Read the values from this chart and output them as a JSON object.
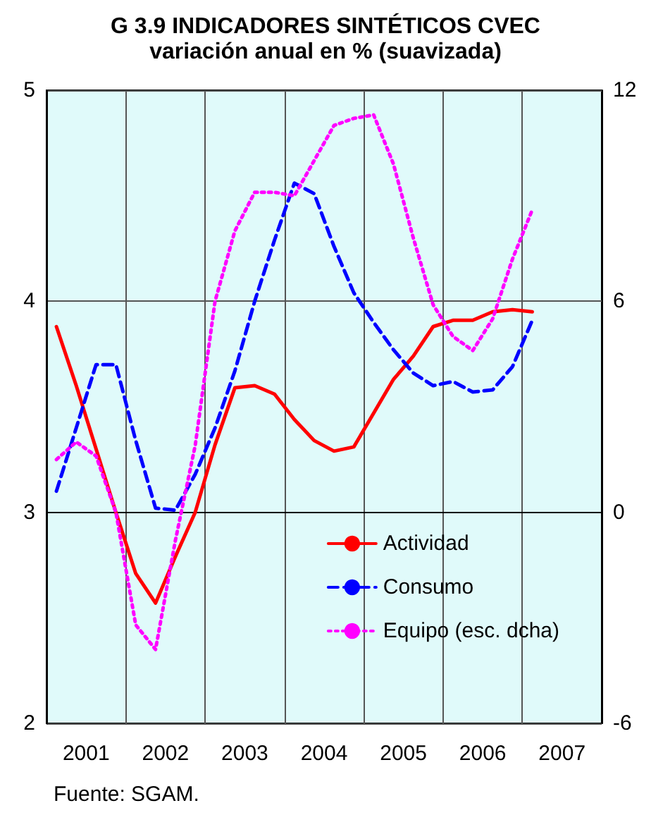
{
  "chart_data": {
    "type": "line",
    "title": "G 3.9 INDICADORES SINTÉTICOS CVEC",
    "subtitle": "variación anual en % (suavizada)",
    "x": [
      2001.125,
      2001.375,
      2001.625,
      2001.875,
      2002.125,
      2002.375,
      2002.625,
      2002.875,
      2003.125,
      2003.375,
      2003.625,
      2003.875,
      2004.125,
      2004.375,
      2004.625,
      2004.875,
      2005.125,
      2005.375,
      2005.625,
      2005.875,
      2006.125,
      2006.375,
      2006.625,
      2006.875,
      2007.125
    ],
    "series": [
      {
        "name": "Actividad",
        "color": "#ff0000",
        "line_style": "solid",
        "values": [
          3.88,
          3.6,
          3.3,
          3.0,
          2.71,
          2.57,
          2.79,
          3.0,
          3.32,
          3.59,
          3.6,
          3.56,
          3.44,
          3.34,
          3.29,
          3.31,
          3.47,
          3.63,
          3.74,
          3.88,
          3.91,
          3.91,
          3.95,
          3.96,
          3.95
        ]
      },
      {
        "name": "Consumo",
        "color": "#0000ff",
        "line_style": "dashed",
        "values": [
          3.1,
          3.4,
          3.7,
          3.7,
          3.34,
          3.02,
          3.01,
          3.18,
          3.4,
          3.67,
          4.0,
          4.29,
          4.56,
          4.51,
          4.26,
          4.04,
          3.9,
          3.77,
          3.66,
          3.6,
          3.62,
          3.57,
          3.58,
          3.69,
          3.91
        ]
      },
      {
        "name": "Equipo (esc. dcha)",
        "color": "#ff00ff",
        "line_style": "dotted",
        "axis": "y2",
        "values": [
          1.5,
          2.0,
          1.6,
          0.0,
          -3.2,
          -3.9,
          -0.8,
          1.9,
          6.0,
          8.0,
          9.1,
          9.1,
          9.0,
          10.0,
          11.0,
          11.2,
          11.3,
          9.9,
          7.8,
          5.9,
          5.0,
          4.6,
          5.5,
          7.2,
          8.6
        ]
      }
    ],
    "xlim": [
      2001,
      2008
    ],
    "xticks": [
      {
        "value": 2001.5,
        "label": "2001"
      },
      {
        "value": 2002,
        "label": null
      },
      {
        "value": 2002.5,
        "label": "2002"
      },
      {
        "value": 2003,
        "label": null
      },
      {
        "value": 2003.5,
        "label": "2003"
      },
      {
        "value": 2004,
        "label": null
      },
      {
        "value": 2004.5,
        "label": "2004"
      },
      {
        "value": 2005,
        "label": null
      },
      {
        "value": 2005.5,
        "label": "2005"
      },
      {
        "value": 2006,
        "label": null
      },
      {
        "value": 2006.5,
        "label": "2006"
      },
      {
        "value": 2007,
        "label": null
      },
      {
        "value": 2007.5,
        "label": "2007"
      }
    ],
    "ylim": [
      2,
      5
    ],
    "yticks": [
      2,
      3,
      4,
      5
    ],
    "y2lim": [
      -6,
      12
    ],
    "y2ticks": [
      -6,
      0,
      6,
      12
    ],
    "grid": true,
    "legend": "bottom right",
    "annotations": [
      "Fuente: SGAM."
    ]
  }
}
